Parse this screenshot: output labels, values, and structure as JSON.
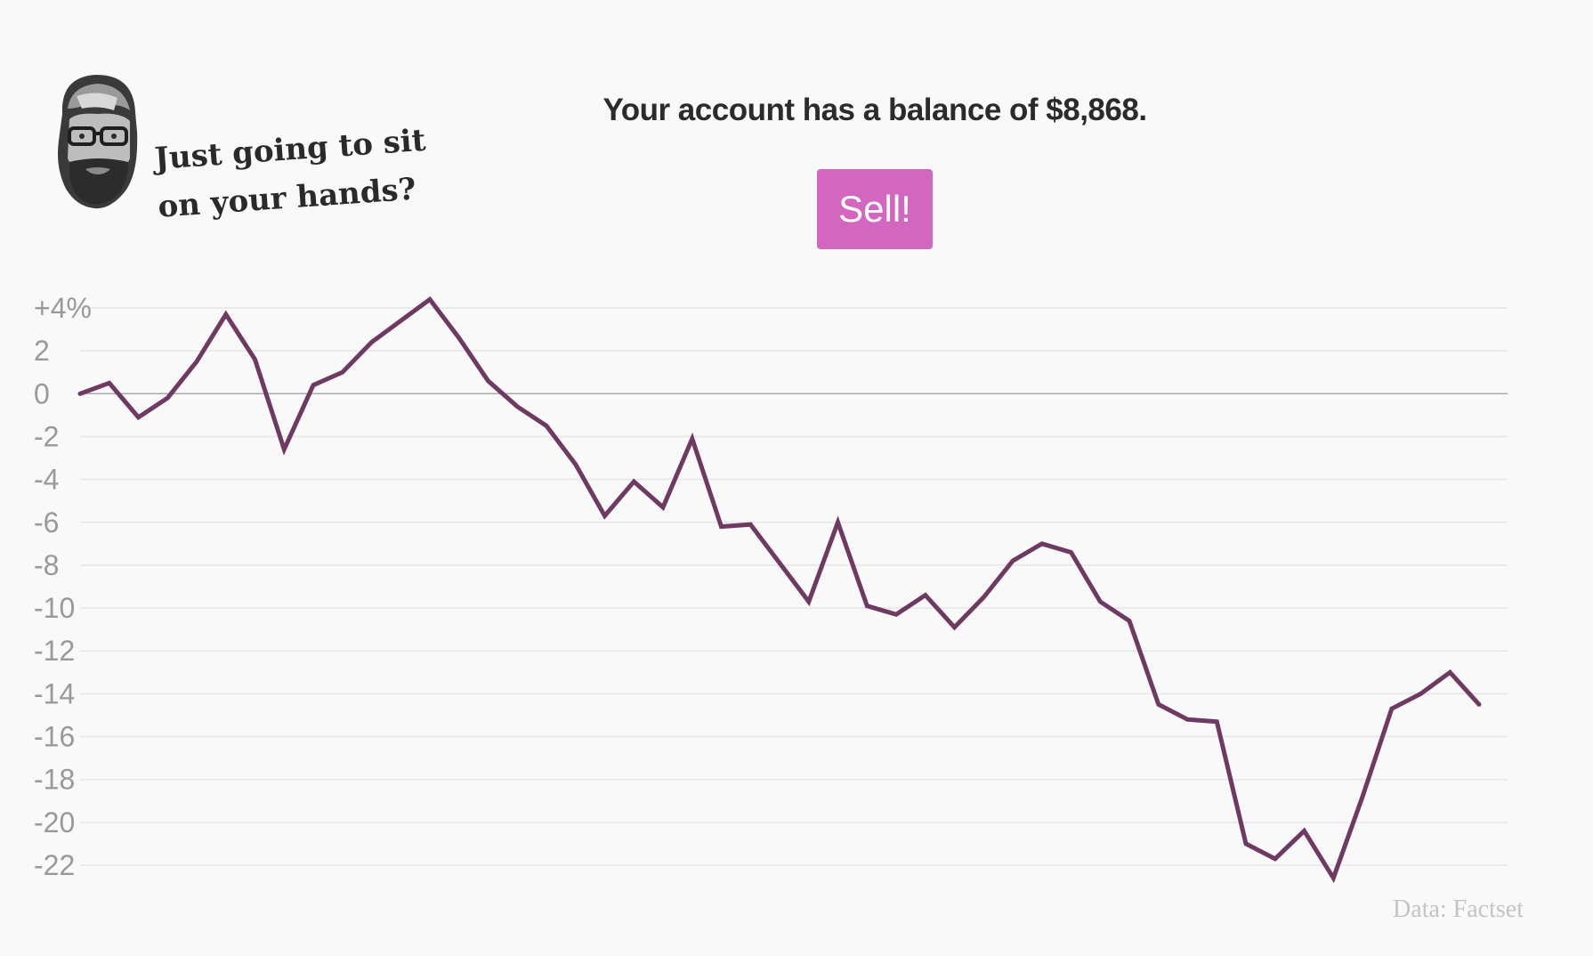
{
  "header": {
    "quip": "Just going to sit on your hands?",
    "balance_text": "Your account has a balance of $8,868.",
    "sell_label": "Sell!"
  },
  "colors": {
    "line": "#6e3a62",
    "button": "#d366bf",
    "grid": "#e6e6e6",
    "zero_line": "#aaaaaa",
    "tick_text": "#999999"
  },
  "chart_data": {
    "type": "line",
    "title": "",
    "xlabel": "",
    "ylabel": "",
    "ylim": [
      -22.5,
      4.2
    ],
    "y_ticks": [
      {
        "value": 4,
        "label": "+4%"
      },
      {
        "value": 2,
        "label": "2"
      },
      {
        "value": 0,
        "label": "0"
      },
      {
        "value": -2,
        "label": "-2"
      },
      {
        "value": -4,
        "label": "-4"
      },
      {
        "value": -6,
        "label": "-6"
      },
      {
        "value": -8,
        "label": "-8"
      },
      {
        "value": -10,
        "label": "-10"
      },
      {
        "value": -12,
        "label": "-12"
      },
      {
        "value": -14,
        "label": "-14"
      },
      {
        "value": -16,
        "label": "-16"
      },
      {
        "value": -18,
        "label": "-18"
      },
      {
        "value": -20,
        "label": "-20"
      },
      {
        "value": -22,
        "label": "-22"
      }
    ],
    "grid": true,
    "values": [
      0,
      0.5,
      -1.1,
      -0.2,
      1.5,
      3.7,
      1.6,
      -2.6,
      0.4,
      1.0,
      2.4,
      3.4,
      4.4,
      2.6,
      0.6,
      -0.6,
      -1.5,
      -3.3,
      -5.7,
      -4.1,
      -5.3,
      -2.1,
      -6.2,
      -6.1,
      -7.9,
      -9.7,
      -6.0,
      -9.9,
      -10.3,
      -9.4,
      -10.9,
      -9.5,
      -7.8,
      -7.0,
      -7.4,
      -9.7,
      -10.6,
      -14.5,
      -15.2,
      -15.3,
      -21.0,
      -21.7,
      -20.4,
      -22.6,
      -18.8,
      -14.7,
      -14.0,
      -13.0,
      -14.5
    ]
  },
  "source": "Data: Factset"
}
